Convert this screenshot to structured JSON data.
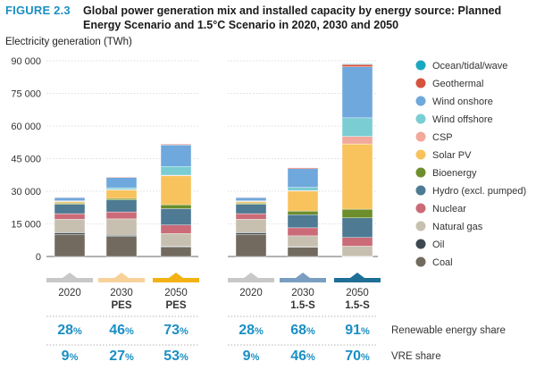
{
  "figure": {
    "label": "FIGURE 2.3",
    "title": "Global power generation mix and installed capacity by energy source: Planned Energy Scenario and 1.5°C Scenario in 2020, 2030 and 2050"
  },
  "chart_data": {
    "type": "bar",
    "stacked": true,
    "ylabel": "Electricity generation (TWh)",
    "ylim": [
      0,
      90000
    ],
    "yticks": [
      0,
      15000,
      30000,
      45000,
      60000,
      75000,
      90000
    ],
    "ytick_labels": [
      "0",
      "15 000",
      "30 000",
      "45 000",
      "60 000",
      "75 000",
      "90 000"
    ],
    "grid": true,
    "legend_position": "right",
    "groups": [
      {
        "name": "PES",
        "categories": [
          {
            "line1": "2020",
            "line2": ""
          },
          {
            "line1": "2030",
            "line2": "PES"
          },
          {
            "line1": "2050",
            "line2": "PES"
          }
        ]
      },
      {
        "name": "1.5-S",
        "categories": [
          {
            "line1": "2020",
            "line2": ""
          },
          {
            "line1": "2030",
            "line2": "1.5-S"
          },
          {
            "line1": "2050",
            "line2": "1.5-S"
          }
        ]
      }
    ],
    "series": [
      {
        "name": "Coal",
        "color": "#726a5f",
        "values": [
          10200,
          9200,
          4300,
          10200,
          4300,
          100
        ]
      },
      {
        "name": "Oil",
        "color": "#3d4852",
        "values": [
          700,
          500,
          300,
          700,
          200,
          50
        ]
      },
      {
        "name": "Natural gas",
        "color": "#c7c0b0",
        "values": [
          6200,
          7600,
          6000,
          6200,
          5000,
          4600
        ]
      },
      {
        "name": "Nuclear",
        "color": "#cc6b78",
        "values": [
          2600,
          3200,
          3900,
          2600,
          3700,
          4000
        ]
      },
      {
        "name": "Hydro (excl. pumped)",
        "color": "#4e7a93",
        "values": [
          4300,
          5500,
          7500,
          4300,
          6000,
          9000
        ]
      },
      {
        "name": "Bioenergy",
        "color": "#6d8e2c",
        "values": [
          500,
          700,
          1800,
          500,
          1700,
          4000
        ]
      },
      {
        "name": "Solar PV",
        "color": "#f8c35d",
        "values": [
          800,
          4000,
          13300,
          800,
          9200,
          30000
        ]
      },
      {
        "name": "CSP",
        "color": "#f2a89a",
        "values": [
          50,
          100,
          300,
          50,
          200,
          3500
        ]
      },
      {
        "name": "Wind offshore",
        "color": "#79cdd3",
        "values": [
          300,
          800,
          4000,
          300,
          1500,
          8500
        ]
      },
      {
        "name": "Wind onshore",
        "color": "#6fa8dc",
        "values": [
          1500,
          4800,
          9900,
          1500,
          8600,
          23500
        ]
      },
      {
        "name": "Geothermal",
        "color": "#d6533e",
        "values": [
          100,
          150,
          300,
          100,
          400,
          1000
        ]
      },
      {
        "name": "Ocean/tidal/wave",
        "color": "#19a8c2",
        "values": [
          0,
          0,
          0,
          0,
          0,
          300
        ]
      }
    ],
    "tab_colors": [
      "#c8c8c8",
      "#f6d29a",
      "#f2b213",
      "#c8c8c8",
      "#7a9ec1",
      "#1d6f96"
    ],
    "table": {
      "rows": [
        {
          "label": "Renewable energy share",
          "values": [
            "28",
            "46",
            "73",
            "28",
            "68",
            "91"
          ],
          "unit": "%"
        },
        {
          "label": "VRE share",
          "values": [
            "9",
            "27",
            "53",
            "9",
            "46",
            "70"
          ],
          "unit": "%"
        }
      ]
    }
  }
}
